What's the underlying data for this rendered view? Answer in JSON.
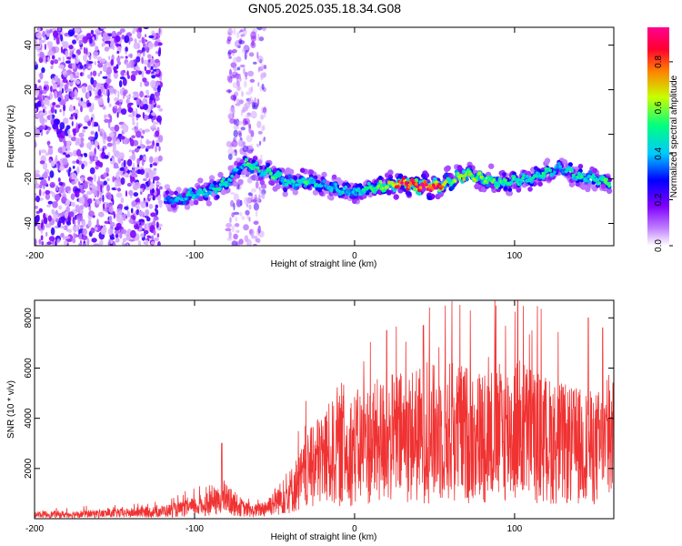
{
  "figure_title": "GN05.2025.035.18.34.G08",
  "chart_data": [
    {
      "type": "heatmap",
      "title": "GN05.2025.035.18.34.G08",
      "xlabel": "Height of straight line (km)",
      "ylabel": "Frequency (Hz)",
      "xlim": [
        -200,
        162
      ],
      "ylim": [
        -50,
        48
      ],
      "x_ticks": [
        -200,
        -100,
        0,
        100
      ],
      "y_ticks": [
        -40,
        -20,
        0,
        20,
        40
      ],
      "colorbar": {
        "label": "Normalized spectral amplitude",
        "range": [
          0.0,
          0.95
        ],
        "ticks": [
          0.0,
          0.2,
          0.4,
          0.6,
          0.8
        ],
        "tick_labels": [
          "0.0",
          "0.2",
          "0.4",
          "0.6",
          "0.8"
        ]
      },
      "ridge": {
        "x": [
          -118,
          -110,
          -100,
          -90,
          -80,
          -72,
          -65,
          -58,
          -50,
          -40,
          -30,
          -20,
          -10,
          0,
          10,
          20,
          30,
          40,
          50,
          60,
          70,
          80,
          90,
          100,
          110,
          120,
          130,
          140,
          150,
          160
        ],
        "frequency": [
          -30,
          -29,
          -27,
          -25,
          -22,
          -15,
          -13,
          -17,
          -18,
          -22,
          -21,
          -23,
          -25,
          -26,
          -24,
          -23,
          -22,
          -23,
          -24,
          -21,
          -18,
          -20,
          -22,
          -21,
          -20,
          -17,
          -15,
          -19,
          -20,
          -22
        ],
        "peak_amplitude": [
          0.35,
          0.4,
          0.45,
          0.45,
          0.5,
          0.35,
          0.55,
          0.45,
          0.5,
          0.45,
          0.5,
          0.4,
          0.45,
          0.4,
          0.55,
          0.6,
          0.9,
          0.9,
          0.9,
          0.55,
          0.65,
          0.6,
          0.5,
          0.5,
          0.45,
          0.5,
          0.4,
          0.5,
          0.45,
          0.6
        ]
      },
      "noise_regions": [
        {
          "x_range": [
            -200,
            -121
          ],
          "frequency_range": [
            -50,
            48
          ]
        },
        {
          "x_range": [
            -79,
            -56
          ],
          "frequency_range": [
            -50,
            48
          ]
        }
      ],
      "color_scale_colors": [
        "#ffffff",
        "#8000ff",
        "#0000ff",
        "#00c8ff",
        "#00ff80",
        "#c8ff00",
        "#ff8000",
        "#ff0060",
        "#ff0090"
      ]
    },
    {
      "type": "line",
      "xlabel": "Height of straight line (km)",
      "ylabel": "SNR (10 * v/v)",
      "xlim": [
        -200,
        162
      ],
      "ylim": [
        0,
        8700
      ],
      "x_ticks": [
        -200,
        -100,
        0,
        100
      ],
      "y_ticks": [
        2000,
        4000,
        6000,
        8000
      ],
      "line_color": "#f03232",
      "series": [
        {
          "x": [
            -200,
            -190,
            -180,
            -170,
            -160,
            -150,
            -140,
            -130,
            -120,
            -110,
            -100,
            -95,
            -90,
            -85,
            -80,
            -75,
            -70,
            -65,
            -60,
            -55,
            -50,
            -45,
            -40,
            -35,
            -30,
            -25,
            -20,
            -15,
            -10,
            -5,
            0,
            5,
            10,
            15,
            20,
            25,
            30,
            35,
            40,
            45,
            50,
            55,
            60,
            65,
            70,
            75,
            80,
            85,
            90,
            95,
            100,
            105,
            110,
            115,
            120,
            125,
            130,
            135,
            140,
            145,
            150,
            155,
            160
          ],
          "values": [
            200,
            200,
            200,
            220,
            230,
            250,
            270,
            300,
            350,
            420,
            550,
            650,
            700,
            800,
            900,
            700,
            500,
            350,
            400,
            550,
            800,
            1000,
            1300,
            1700,
            2100,
            2500,
            2900,
            3000,
            3200,
            3200,
            3300,
            3400,
            3500,
            3600,
            3700,
            3800,
            3800,
            3900,
            3900,
            4000,
            4000,
            4100,
            4100,
            4000,
            4000,
            3900,
            3900,
            4000,
            4000,
            4100,
            4200,
            4200,
            4000,
            3800,
            3700,
            3600,
            3500,
            3400,
            3400,
            3300,
            3300,
            3400,
            3500
          ],
          "spikes": [
            {
              "x": -83,
              "y": 3000
            },
            {
              "x": 20,
              "y": 7500
            },
            {
              "x": 43,
              "y": 7700
            },
            {
              "x": 102,
              "y": 8700
            },
            {
              "x": 146,
              "y": 8000
            },
            {
              "x": 155,
              "y": 7600
            }
          ]
        }
      ]
    }
  ]
}
